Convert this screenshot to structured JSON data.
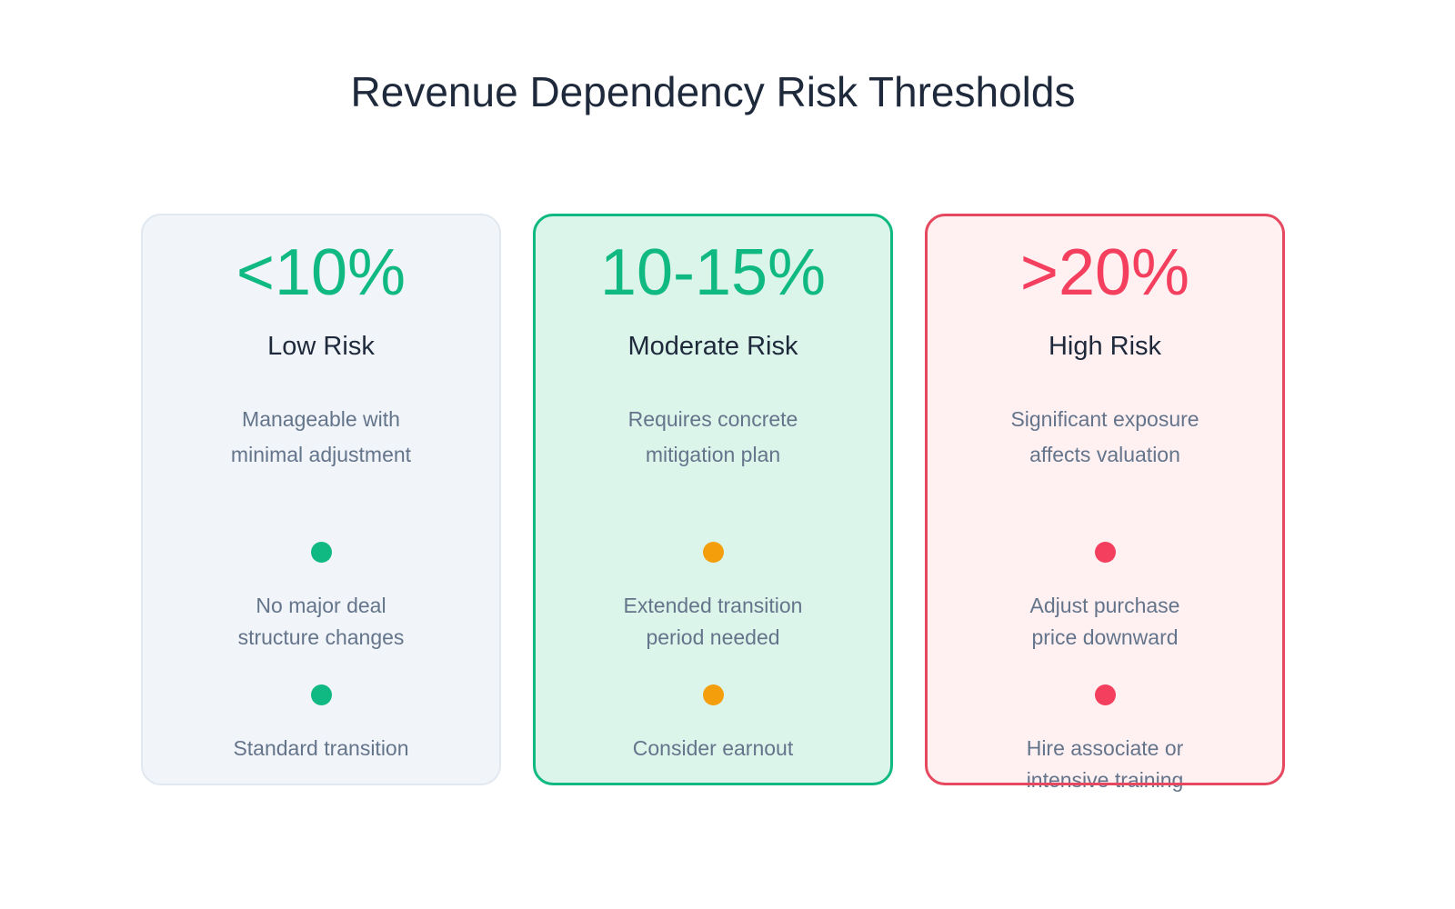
{
  "title": "Revenue Dependency Risk Thresholds",
  "cards": [
    {
      "threshold": "<10%",
      "level": "Low Risk",
      "desc": [
        "Manageable with",
        "minimal adjustment"
      ],
      "items": [
        [
          "No major deal",
          "structure changes"
        ],
        [
          "Standard transition"
        ]
      ],
      "accent": "#10b981",
      "bg": "#f1f5f9",
      "border": "#e2e8f0"
    },
    {
      "threshold": "10-15%",
      "level": "Moderate Risk",
      "desc": [
        "Requires concrete",
        "mitigation plan"
      ],
      "items": [
        [
          "Extended transition",
          "period needed"
        ],
        [
          "Consider earnout"
        ]
      ],
      "accent": "#f59e0b",
      "bg": "#dcf5ea",
      "border": "#10b981"
    },
    {
      "threshold": ">20%",
      "level": "High Risk",
      "desc": [
        "Significant exposure",
        "affects valuation"
      ],
      "items": [
        [
          "Adjust purchase",
          "price downward"
        ],
        [
          "Hire associate or",
          "intensive training"
        ]
      ],
      "accent": "#f43f5e",
      "bg": "#fff1f2",
      "border": "#e5485f"
    }
  ],
  "number_colors": [
    "#10b981",
    "#10b981",
    "#f43f5e"
  ]
}
